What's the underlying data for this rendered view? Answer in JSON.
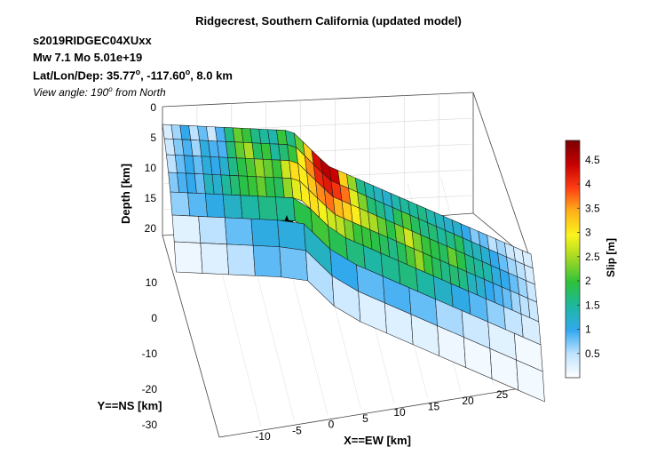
{
  "header": {
    "title": "Ridgecrest, Southern California (updated model)",
    "event_id": "s2019RIDGEC04XUxx",
    "magnitude": "Mw 7.1     Mo 5.01e+19",
    "location_prefix": "Lat/Lon/Dep: 35.77",
    "location_mid": ", -117.60",
    "location_suffix": ", 8.0 km",
    "degree_mark": "o",
    "view_prefix": "View angle: 190",
    "view_suffix": " from North"
  },
  "chart_data": {
    "type": "heatmap",
    "title": "Ridgecrest, Southern California (updated model)",
    "xlabel": "X==EW [km]",
    "ylabel": "Y==NS [km]",
    "zlabel": "Depth [km]",
    "colorbar_label": "Slip [m]",
    "x_ticks": [
      "-10",
      "-5",
      "0",
      "5",
      "10",
      "15",
      "20",
      "25"
    ],
    "y_ticks": [
      "10",
      "0",
      "-10",
      "-20",
      "-30"
    ],
    "z_ticks": [
      "0",
      "5",
      "10",
      "15",
      "20"
    ],
    "colorbar_ticks": [
      "0.5",
      "1",
      "1.5",
      "2",
      "2.5",
      "3",
      "3.5",
      "4",
      "4.5"
    ],
    "colorbar_range": [
      0,
      4.9
    ],
    "colorbar_stops": [
      "#ffffff",
      "#bfe3ff",
      "#33a8f0",
      "#1db7a2",
      "#2cc23c",
      "#9fd824",
      "#fbf41c",
      "#ffb21a",
      "#ff3d12",
      "#c70000",
      "#7a0000"
    ],
    "hypocenter": {
      "x_km": -2,
      "depth_km": 8
    },
    "rows": [
      {
        "depth": "0-4",
        "values": [
          0.3,
          0.6,
          1.0,
          0.5,
          0.8,
          0.4,
          0.9,
          1.6,
          2.2,
          2.0,
          1.6,
          1.5,
          1.4,
          2.0,
          1.6,
          2.2,
          3.2,
          4.3,
          4.5,
          4.4,
          3.2,
          2.4,
          1.6,
          1.4,
          1.3,
          1.2,
          1.4,
          1.5,
          1.5,
          1.6,
          1.4,
          1.3,
          1.2,
          1.2,
          1.0,
          0.7,
          0.8,
          0.5,
          0.6,
          0.4,
          0.3,
          0.3
        ]
      },
      {
        "depth": "4-8",
        "values": [
          0.4,
          0.7,
          0.9,
          0.6,
          1.1,
          0.9,
          0.9,
          1.7,
          2.2,
          2.5,
          1.8,
          2.0,
          1.5,
          1.7,
          2.0,
          3.0,
          3.6,
          4.1,
          4.2,
          4.0,
          3.7,
          2.8,
          2.3,
          1.7,
          1.6,
          1.4,
          1.8,
          2.1,
          1.8,
          1.6,
          1.7,
          1.5,
          1.6,
          1.8,
          1.4,
          1.3,
          1.2,
          1.0,
          0.8,
          0.6,
          0.5,
          0.3
        ]
      },
      {
        "depth": "8-12",
        "values": [
          0.5,
          0.8,
          1.0,
          0.8,
          1.1,
          1.0,
          1.2,
          1.6,
          1.9,
          2.1,
          2.4,
          2.2,
          2.0,
          2.7,
          3.1,
          3.0,
          3.3,
          3.6,
          3.7,
          3.4,
          3.2,
          3.0,
          2.6,
          2.5,
          2.2,
          1.9,
          2.3,
          2.7,
          2.3,
          2.0,
          1.9,
          1.8,
          2.2,
          1.9,
          1.6,
          1.5,
          1.4,
          1.1,
          1.0,
          0.8,
          0.6,
          0.4
        ]
      },
      {
        "depth": "12-17",
        "values": [
          0.7,
          0.9,
          1.0,
          0.8,
          1.3,
          1.2,
          1.5,
          1.7,
          1.9,
          2.0,
          2.2,
          1.9,
          1.8,
          2.4,
          2.8,
          3.0,
          3.1,
          2.9,
          2.7,
          2.6,
          2.3,
          2.0,
          2.0,
          1.9,
          1.8,
          1.6,
          1.8,
          2.1,
          2.4,
          2.0,
          1.8,
          1.6,
          1.7,
          1.6,
          1.3,
          1.2,
          1.0,
          0.9,
          0.8,
          0.6,
          0.5,
          0.4
        ]
      },
      {
        "depth": "17-22",
        "values": [
          0.6,
          0.7,
          0.8,
          0.9,
          1.0,
          1.1,
          1.2,
          1.3,
          1.4,
          1.5,
          1.6,
          1.6,
          1.5,
          1.6,
          1.8,
          2.0,
          2.1,
          2.0,
          1.9,
          1.8,
          1.7,
          1.6,
          1.5,
          1.4,
          1.5,
          1.6,
          1.7,
          1.6,
          1.5,
          1.4,
          1.3,
          1.2,
          1.1,
          1.0,
          0.9,
          0.8,
          0.7,
          0.6,
          0.5,
          0.4,
          0.3,
          0.3
        ]
      },
      {
        "depth": "22-27",
        "values": [
          0.2,
          0.2,
          0.3,
          0.4,
          0.5,
          0.6,
          0.7,
          0.8,
          0.9,
          1.0,
          1.1,
          1.1,
          1.0,
          1.1,
          1.2,
          1.3,
          1.3,
          1.2,
          1.1,
          1.0,
          0.9,
          0.9,
          0.8,
          0.8,
          0.8,
          0.9,
          1.0,
          0.9,
          0.8,
          0.7,
          0.6,
          0.6,
          0.5,
          0.5,
          0.4,
          0.3,
          0.3,
          0.2,
          0.2,
          0.1,
          0.1,
          0.1
        ]
      },
      {
        "depth": "27-33",
        "values": [
          0.1,
          0.1,
          0.2,
          0.2,
          0.3,
          0.3,
          0.4,
          0.5,
          0.6,
          0.7,
          0.9,
          0.9,
          0.8,
          0.8,
          0.7,
          0.6,
          0.5,
          0.5,
          0.4,
          0.4,
          0.3,
          0.3,
          0.3,
          0.2,
          0.2,
          0.3,
          0.3,
          0.3,
          0.2,
          0.2,
          0.2,
          0.1,
          0.1,
          0.1,
          0.1,
          0.1,
          0.1,
          0.1,
          0.1,
          0.1,
          0.1,
          0.1
        ]
      }
    ]
  }
}
